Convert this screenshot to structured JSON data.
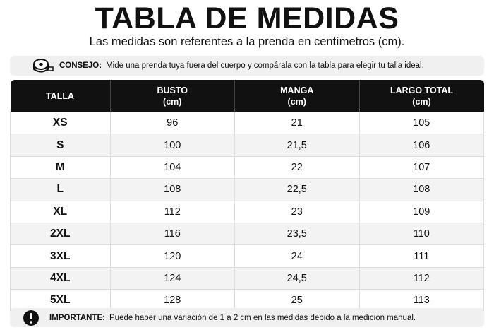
{
  "header": {
    "title": "TABLA DE MEDIDAS",
    "subtitle": "Las medidas son referentes a la prenda en centímetros (cm)."
  },
  "tip": {
    "label": "CONSEJO:",
    "text": "Mide una prenda tuya fuera del cuerpo y compárala con la tabla para elegir tu talla ideal."
  },
  "table": {
    "columns": [
      {
        "name": "TALLA"
      },
      {
        "name": "BUSTO",
        "unit": "(cm)"
      },
      {
        "name": "MANGA",
        "unit": "(cm)"
      },
      {
        "name": "LARGO TOTAL",
        "unit": "(cm)"
      }
    ],
    "rows": [
      [
        "XS",
        "96",
        "21",
        "105"
      ],
      [
        "S",
        "100",
        "21,5",
        "106"
      ],
      [
        "M",
        "104",
        "22",
        "107"
      ],
      [
        "L",
        "108",
        "22,5",
        "108"
      ],
      [
        "XL",
        "112",
        "23",
        "109"
      ],
      [
        "2XL",
        "116",
        "23,5",
        "110"
      ],
      [
        "3XL",
        "120",
        "24",
        "111"
      ],
      [
        "4XL",
        "124",
        "24,5",
        "112"
      ],
      [
        "5XL",
        "128",
        "25",
        "113"
      ]
    ]
  },
  "note": {
    "label": "IMPORTANTE:",
    "text": "Puede haber una variación de 1 a 2 cm en las medidas debido a la medición manual."
  }
}
